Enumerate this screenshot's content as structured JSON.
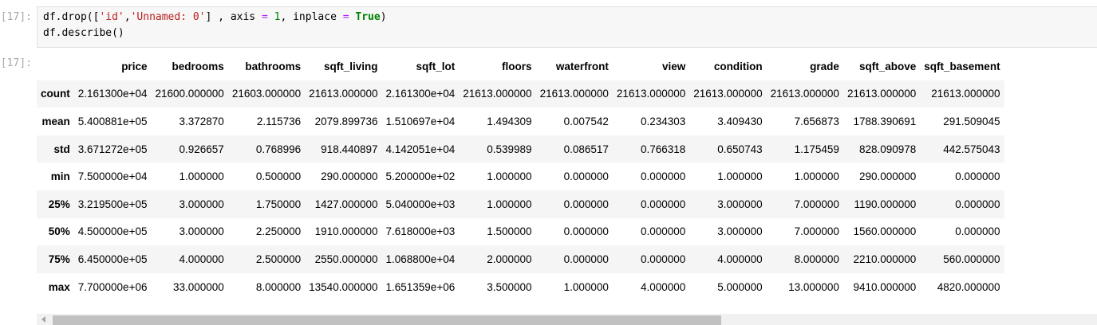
{
  "input_prompt": "[17]:",
  "output_prompt": "[17]:",
  "code": {
    "line1": {
      "p1": "df.drop([",
      "s1": "'id'",
      "p2": ",",
      "s2": "'Unnamed: 0'",
      "p3": "] , axis ",
      "op1": "=",
      "p4": " ",
      "n1": "1",
      "p5": ", inplace ",
      "op2": "=",
      "p6": " ",
      "kw1": "True",
      "p7": ")"
    },
    "line2": "df.describe()"
  },
  "table": {
    "columns": [
      "",
      "price",
      "bedrooms",
      "bathrooms",
      "sqft_living",
      "sqft_lot",
      "floors",
      "waterfront",
      "view",
      "condition",
      "grade",
      "sqft_above",
      "sqft_basement"
    ],
    "rows": [
      {
        "label": "count",
        "values": [
          "2.161300e+04",
          "21600.000000",
          "21603.000000",
          "21613.000000",
          "2.161300e+04",
          "21613.000000",
          "21613.000000",
          "21613.000000",
          "21613.000000",
          "21613.000000",
          "21613.000000",
          "21613.000000"
        ]
      },
      {
        "label": "mean",
        "values": [
          "5.400881e+05",
          "3.372870",
          "2.115736",
          "2079.899736",
          "1.510697e+04",
          "1.494309",
          "0.007542",
          "0.234303",
          "3.409430",
          "7.656873",
          "1788.390691",
          "291.509045"
        ]
      },
      {
        "label": "std",
        "values": [
          "3.671272e+05",
          "0.926657",
          "0.768996",
          "918.440897",
          "4.142051e+04",
          "0.539989",
          "0.086517",
          "0.766318",
          "0.650743",
          "1.175459",
          "828.090978",
          "442.575043"
        ]
      },
      {
        "label": "min",
        "values": [
          "7.500000e+04",
          "1.000000",
          "0.500000",
          "290.000000",
          "5.200000e+02",
          "1.000000",
          "0.000000",
          "0.000000",
          "1.000000",
          "1.000000",
          "290.000000",
          "0.000000"
        ]
      },
      {
        "label": "25%",
        "values": [
          "3.219500e+05",
          "3.000000",
          "1.750000",
          "1427.000000",
          "5.040000e+03",
          "1.000000",
          "0.000000",
          "0.000000",
          "3.000000",
          "7.000000",
          "1190.000000",
          "0.000000"
        ]
      },
      {
        "label": "50%",
        "values": [
          "4.500000e+05",
          "3.000000",
          "2.250000",
          "1910.000000",
          "7.618000e+03",
          "1.500000",
          "0.000000",
          "0.000000",
          "3.000000",
          "7.000000",
          "1560.000000",
          "0.000000"
        ]
      },
      {
        "label": "75%",
        "values": [
          "6.450000e+05",
          "4.000000",
          "2.500000",
          "2550.000000",
          "1.068800e+04",
          "2.000000",
          "0.000000",
          "0.000000",
          "4.000000",
          "8.000000",
          "2210.000000",
          "560.000000"
        ]
      },
      {
        "label": "max",
        "values": [
          "7.700000e+06",
          "33.000000",
          "8.000000",
          "13540.000000",
          "1.651359e+06",
          "3.500000",
          "1.000000",
          "4.000000",
          "5.000000",
          "13.000000",
          "9410.000000",
          "4820.000000"
        ]
      }
    ]
  },
  "scrollbar": {
    "visible_fraction": 0.64,
    "position": 0
  }
}
